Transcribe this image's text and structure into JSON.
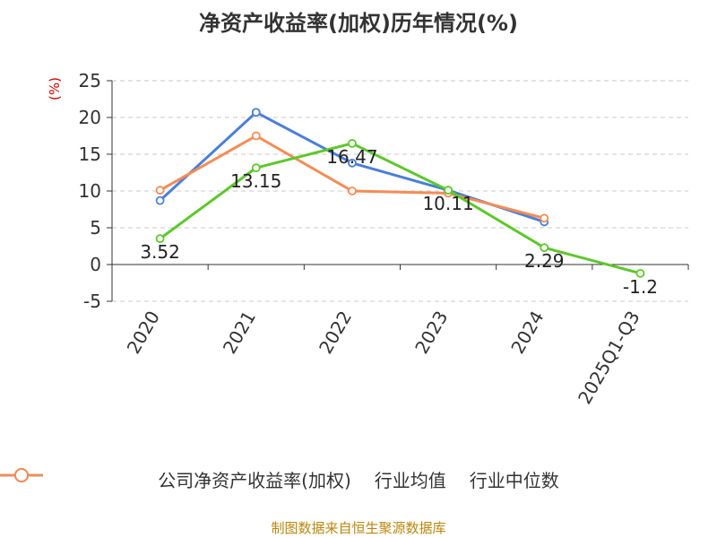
{
  "chart_data": {
    "type": "line",
    "title": "净资产收益率(加权)历年情况(%)",
    "ylabel": "(%)",
    "categories": [
      "2020",
      "2021",
      "2022",
      "2023",
      "2024",
      "2025Q1-Q3"
    ],
    "ylim": [
      -5,
      25
    ],
    "yticks": [
      -5,
      0,
      5,
      10,
      15,
      20,
      25
    ],
    "grid": true,
    "legend_position": "bottom",
    "series": [
      {
        "name": "公司净资产收益率(加权)",
        "color": "#5dc72c",
        "values": [
          3.52,
          13.15,
          16.47,
          10.11,
          2.29,
          -1.2
        ],
        "labels": [
          "3.52",
          "13.15",
          "16.47",
          "10.11",
          "2.29",
          "-1.2"
        ]
      },
      {
        "name": "行业均值",
        "color": "#4a7fd8",
        "values": [
          8.7,
          20.7,
          13.8,
          10.1,
          5.8,
          null
        ]
      },
      {
        "name": "行业中位数",
        "color": "#f58c55",
        "values": [
          10.1,
          17.5,
          10.0,
          9.7,
          6.3,
          null
        ]
      }
    ]
  },
  "source": "制图数据来自恒生聚源数据库"
}
